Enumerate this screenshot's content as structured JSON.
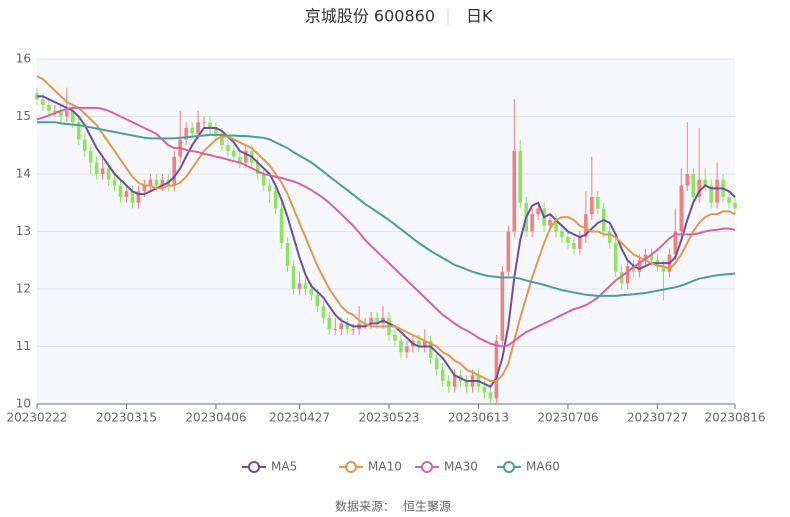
{
  "chart_data": {
    "type": "candlestick",
    "title": "京城股份 600860",
    "subtitle": "日K",
    "source_label": "数据来源：",
    "source_name": "恒生聚源",
    "categories": [
      "20230222",
      null,
      null,
      null,
      null,
      null,
      null,
      null,
      null,
      null,
      null,
      null,
      null,
      null,
      null,
      "20230315",
      null,
      null,
      null,
      null,
      null,
      null,
      null,
      null,
      null,
      null,
      null,
      null,
      null,
      null,
      "20230406",
      null,
      null,
      null,
      null,
      null,
      null,
      null,
      null,
      null,
      null,
      null,
      null,
      null,
      "20230427",
      null,
      null,
      null,
      null,
      null,
      null,
      null,
      null,
      null,
      null,
      null,
      null,
      null,
      null,
      "20230523",
      null,
      null,
      null,
      null,
      null,
      null,
      null,
      null,
      null,
      null,
      null,
      null,
      null,
      null,
      "20230613",
      null,
      null,
      null,
      null,
      null,
      null,
      null,
      null,
      null,
      null,
      null,
      null,
      null,
      null,
      "20230706",
      null,
      null,
      null,
      null,
      null,
      null,
      null,
      null,
      null,
      null,
      null,
      null,
      null,
      null,
      "20230727",
      null,
      null,
      null,
      null,
      null,
      null,
      null,
      null,
      null,
      null,
      null,
      null,
      "20230816"
    ],
    "open": [
      15.4,
      15.3,
      15.2,
      15.1,
      15.1,
      15.0,
      15.1,
      14.9,
      14.6,
      14.4,
      14.2,
      14.0,
      14.1,
      13.9,
      13.8,
      13.6,
      13.7,
      13.5,
      13.7,
      13.8,
      13.9,
      13.8,
      13.9,
      13.8,
      14.3,
      14.6,
      14.8,
      14.7,
      14.9,
      14.9,
      14.8,
      14.7,
      14.5,
      14.4,
      14.3,
      14.2,
      14.4,
      14.2,
      14.0,
      13.8,
      13.7,
      13.4,
      12.8,
      12.4,
      12.0,
      12.1,
      12.0,
      11.9,
      11.7,
      11.5,
      11.3,
      11.3,
      11.4,
      11.3,
      11.3,
      11.4,
      11.4,
      11.5,
      11.4,
      11.5,
      11.2,
      11.1,
      10.9,
      11.0,
      11.1,
      11.0,
      11.1,
      10.8,
      10.6,
      10.4,
      10.3,
      10.5,
      10.4,
      10.3,
      10.5,
      10.3,
      10.2,
      10.1,
      11.1,
      12.3,
      13.0,
      14.4,
      13.5,
      13.0,
      13.3,
      13.4,
      13.1,
      13.2,
      13.0,
      12.9,
      12.8,
      12.7,
      12.9,
      13.3,
      13.6,
      13.4,
      13.0,
      12.8,
      12.3,
      12.1,
      12.4,
      12.3,
      12.5,
      12.6,
      12.5,
      12.4,
      12.3,
      12.6,
      13.0,
      13.8,
      14.0,
      13.6,
      13.9,
      13.8,
      13.5,
      13.9,
      13.6,
      13.5
    ],
    "close": [
      15.3,
      15.2,
      15.1,
      15.1,
      15.0,
      15.1,
      14.9,
      14.6,
      14.4,
      14.2,
      14.0,
      14.1,
      13.9,
      13.8,
      13.6,
      13.7,
      13.5,
      13.7,
      13.8,
      13.9,
      13.8,
      13.9,
      13.8,
      14.3,
      14.6,
      14.8,
      14.7,
      14.9,
      14.9,
      14.8,
      14.7,
      14.5,
      14.4,
      14.3,
      14.2,
      14.4,
      14.2,
      14.0,
      13.8,
      13.7,
      13.4,
      12.8,
      12.4,
      12.0,
      12.1,
      12.0,
      11.9,
      11.7,
      11.5,
      11.3,
      11.3,
      11.4,
      11.3,
      11.3,
      11.4,
      11.4,
      11.5,
      11.4,
      11.5,
      11.2,
      11.1,
      10.9,
      11.0,
      11.1,
      11.0,
      11.1,
      10.8,
      10.6,
      10.4,
      10.3,
      10.5,
      10.4,
      10.3,
      10.5,
      10.3,
      10.2,
      10.1,
      11.1,
      12.3,
      13.0,
      14.4,
      13.5,
      13.0,
      13.3,
      13.4,
      13.1,
      13.2,
      13.0,
      12.9,
      12.8,
      12.7,
      12.9,
      13.3,
      13.6,
      13.4,
      13.0,
      12.8,
      12.3,
      12.1,
      12.4,
      12.3,
      12.5,
      12.6,
      12.5,
      12.4,
      12.3,
      12.6,
      13.0,
      13.8,
      14.0,
      13.6,
      13.9,
      13.8,
      13.5,
      13.9,
      13.6,
      13.5,
      13.4
    ],
    "high": [
      15.5,
      15.4,
      15.3,
      15.2,
      15.2,
      15.5,
      15.2,
      15.0,
      14.7,
      14.5,
      14.3,
      14.3,
      14.2,
      14.0,
      13.9,
      13.8,
      13.8,
      13.8,
      13.9,
      14.0,
      14.0,
      14.0,
      14.0,
      14.4,
      15.1,
      14.9,
      14.9,
      15.1,
      15.0,
      15.0,
      14.9,
      14.8,
      14.6,
      14.5,
      14.4,
      14.5,
      14.5,
      14.3,
      14.1,
      13.9,
      13.8,
      13.5,
      12.9,
      12.5,
      12.3,
      12.2,
      12.1,
      12.0,
      11.8,
      11.6,
      11.5,
      11.5,
      11.5,
      11.4,
      11.7,
      11.5,
      11.6,
      11.6,
      11.7,
      11.6,
      11.3,
      11.2,
      11.1,
      11.2,
      11.2,
      11.3,
      11.2,
      10.9,
      10.7,
      10.5,
      10.6,
      10.6,
      10.5,
      10.6,
      10.6,
      10.4,
      10.3,
      11.2,
      12.4,
      13.1,
      15.3,
      14.6,
      13.6,
      13.4,
      13.5,
      13.5,
      13.3,
      13.3,
      13.1,
      13.0,
      12.9,
      13.0,
      13.7,
      14.3,
      13.7,
      13.5,
      13.1,
      12.9,
      12.4,
      12.5,
      12.5,
      12.6,
      12.7,
      12.7,
      12.6,
      12.5,
      12.7,
      13.4,
      14.1,
      14.9,
      14.1,
      14.8,
      14.1,
      13.9,
      14.2,
      14.0,
      13.7,
      13.6
    ],
    "low": [
      15.2,
      15.1,
      15.0,
      15.0,
      14.9,
      14.9,
      14.8,
      14.5,
      14.3,
      14.0,
      13.9,
      13.9,
      13.8,
      13.7,
      13.5,
      13.5,
      13.4,
      13.4,
      13.6,
      13.7,
      13.7,
      13.7,
      13.7,
      13.7,
      14.2,
      14.5,
      14.6,
      14.6,
      14.8,
      14.7,
      14.6,
      14.4,
      14.3,
      14.2,
      14.1,
      14.1,
      14.1,
      13.9,
      13.7,
      13.5,
      13.3,
      12.7,
      12.3,
      11.9,
      11.9,
      11.9,
      11.8,
      11.6,
      11.4,
      11.2,
      11.2,
      11.2,
      11.2,
      11.2,
      11.2,
      11.3,
      11.3,
      11.3,
      11.3,
      11.1,
      11.0,
      10.8,
      10.8,
      10.9,
      10.9,
      10.9,
      10.7,
      10.5,
      10.3,
      10.2,
      10.2,
      10.3,
      10.2,
      10.2,
      10.2,
      10.1,
      10.0,
      10.0,
      11.0,
      12.2,
      12.9,
      13.4,
      12.9,
      12.9,
      13.2,
      13.0,
      13.0,
      12.9,
      12.8,
      12.7,
      12.6,
      12.6,
      12.8,
      13.2,
      13.3,
      12.9,
      12.7,
      12.2,
      12.0,
      12.0,
      12.2,
      12.2,
      12.4,
      12.4,
      12.3,
      11.8,
      12.2,
      12.5,
      12.9,
      13.7,
      13.5,
      13.5,
      13.7,
      13.4,
      13.4,
      13.5,
      13.4,
      13.3
    ],
    "up_color": "#f47f7f",
    "down_color": "#8fe35f",
    "series": [
      {
        "name": "MA5",
        "color": "#6c4f9e",
        "values": [
          15.35,
          15.35,
          15.3,
          15.25,
          15.2,
          15.15,
          15.1,
          15.0,
          14.85,
          14.65,
          14.45,
          14.3,
          14.15,
          14.0,
          13.9,
          13.8,
          13.7,
          13.65,
          13.65,
          13.7,
          13.75,
          13.8,
          13.85,
          13.95,
          14.1,
          14.3,
          14.5,
          14.65,
          14.8,
          14.8,
          14.8,
          14.75,
          14.65,
          14.55,
          14.4,
          14.35,
          14.3,
          14.2,
          14.1,
          14.0,
          13.8,
          13.55,
          13.25,
          12.9,
          12.55,
          12.25,
          12.05,
          11.95,
          11.85,
          11.7,
          11.55,
          11.45,
          11.4,
          11.35,
          11.35,
          11.35,
          11.4,
          11.4,
          11.45,
          11.4,
          11.35,
          11.25,
          11.15,
          11.05,
          11.0,
          11.0,
          11.0,
          10.9,
          10.8,
          10.65,
          10.5,
          10.45,
          10.4,
          10.4,
          10.4,
          10.35,
          10.3,
          10.45,
          10.8,
          11.35,
          12.2,
          12.85,
          13.25,
          13.45,
          13.5,
          13.25,
          13.3,
          13.2,
          13.1,
          13.0,
          12.95,
          12.9,
          12.95,
          13.05,
          13.15,
          13.2,
          13.15,
          12.95,
          12.7,
          12.5,
          12.4,
          12.35,
          12.4,
          12.45,
          12.45,
          12.45,
          12.45,
          12.55,
          12.85,
          13.2,
          13.5,
          13.7,
          13.8,
          13.75,
          13.75,
          13.75,
          13.7,
          13.6
        ]
      },
      {
        "name": "MA10",
        "color": "#e0994f",
        "values": [
          15.7,
          15.65,
          15.55,
          15.45,
          15.35,
          15.25,
          15.2,
          15.15,
          15.05,
          14.95,
          14.85,
          14.7,
          14.55,
          14.4,
          14.25,
          14.1,
          13.95,
          13.85,
          13.8,
          13.8,
          13.75,
          13.75,
          13.8,
          13.8,
          13.85,
          13.95,
          14.1,
          14.25,
          14.4,
          14.5,
          14.6,
          14.65,
          14.65,
          14.6,
          14.55,
          14.5,
          14.45,
          14.35,
          14.25,
          14.15,
          14.0,
          13.85,
          13.65,
          13.4,
          13.15,
          12.9,
          12.65,
          12.4,
          12.2,
          12.0,
          11.85,
          11.7,
          11.6,
          11.55,
          11.45,
          11.4,
          11.35,
          11.35,
          11.35,
          11.35,
          11.35,
          11.3,
          11.25,
          11.2,
          11.15,
          11.1,
          11.05,
          11.0,
          10.9,
          10.85,
          10.75,
          10.7,
          10.6,
          10.55,
          10.5,
          10.45,
          10.4,
          10.4,
          10.5,
          10.7,
          11.1,
          11.5,
          11.85,
          12.2,
          12.5,
          12.8,
          13.05,
          13.2,
          13.25,
          13.25,
          13.2,
          13.1,
          13.05,
          13.0,
          13.0,
          12.95,
          12.95,
          12.9,
          12.8,
          12.7,
          12.6,
          12.55,
          12.5,
          12.45,
          12.4,
          12.4,
          12.35,
          12.45,
          12.6,
          12.8,
          13.0,
          13.15,
          13.25,
          13.3,
          13.3,
          13.35,
          13.35,
          13.3
        ]
      },
      {
        "name": "MA30",
        "color": "#d663a8",
        "values": [
          14.95,
          14.98,
          15.02,
          15.06,
          15.1,
          15.13,
          15.15,
          15.15,
          15.15,
          15.15,
          15.15,
          15.13,
          15.1,
          15.05,
          15.0,
          14.95,
          14.9,
          14.85,
          14.8,
          14.75,
          14.7,
          14.6,
          14.5,
          14.45,
          14.45,
          14.42,
          14.4,
          14.38,
          14.35,
          14.33,
          14.3,
          14.28,
          14.25,
          14.22,
          14.2,
          14.15,
          14.1,
          14.05,
          14.0,
          13.98,
          13.95,
          13.93,
          13.9,
          13.87,
          13.83,
          13.78,
          13.72,
          13.65,
          13.58,
          13.5,
          13.4,
          13.3,
          13.2,
          13.1,
          12.98,
          12.85,
          12.75,
          12.65,
          12.55,
          12.45,
          12.35,
          12.25,
          12.15,
          12.05,
          11.95,
          11.85,
          11.75,
          11.65,
          11.55,
          11.48,
          11.4,
          11.33,
          11.28,
          11.22,
          11.15,
          11.1,
          11.05,
          11.02,
          11.0,
          11.02,
          11.1,
          11.18,
          11.25,
          11.3,
          11.35,
          11.4,
          11.45,
          11.5,
          11.55,
          11.6,
          11.65,
          11.68,
          11.72,
          11.78,
          11.85,
          11.95,
          12.05,
          12.15,
          12.22,
          12.3,
          12.38,
          12.45,
          12.52,
          12.6,
          12.68,
          12.78,
          12.88,
          12.95,
          12.95,
          12.95,
          12.95,
          12.97,
          13.0,
          13.02,
          13.03,
          13.05,
          13.05,
          13.03
        ]
      },
      {
        "name": "MA60",
        "color": "#4b9e9b",
        "values": [
          14.9,
          14.9,
          14.9,
          14.9,
          14.88,
          14.87,
          14.86,
          14.85,
          14.83,
          14.81,
          14.79,
          14.77,
          14.75,
          14.73,
          14.71,
          14.69,
          14.67,
          14.65,
          14.63,
          14.62,
          14.62,
          14.62,
          14.62,
          14.62,
          14.63,
          14.64,
          14.65,
          14.66,
          14.67,
          14.68,
          14.68,
          14.68,
          14.67,
          14.67,
          14.66,
          14.66,
          14.65,
          14.64,
          14.63,
          14.6,
          14.55,
          14.5,
          14.45,
          14.38,
          14.32,
          14.26,
          14.2,
          14.12,
          14.04,
          13.96,
          13.88,
          13.8,
          13.72,
          13.64,
          13.56,
          13.48,
          13.41,
          13.34,
          13.27,
          13.2,
          13.12,
          13.04,
          12.96,
          12.88,
          12.8,
          12.73,
          12.66,
          12.6,
          12.54,
          12.48,
          12.42,
          12.38,
          12.34,
          12.3,
          12.27,
          12.24,
          12.22,
          12.21,
          12.2,
          12.2,
          12.2,
          12.18,
          12.15,
          12.12,
          12.1,
          12.07,
          12.04,
          12.01,
          11.98,
          11.96,
          11.94,
          11.92,
          11.9,
          11.89,
          11.88,
          11.88,
          11.88,
          11.88,
          11.89,
          11.9,
          11.91,
          11.92,
          11.93,
          11.95,
          11.97,
          11.99,
          12.01,
          12.03,
          12.06,
          12.1,
          12.14,
          12.18,
          12.2,
          12.22,
          12.24,
          12.25,
          12.26,
          12.27
        ]
      }
    ],
    "ylim": [
      10,
      16
    ],
    "yticks": [
      10,
      11,
      12,
      13,
      14,
      15,
      16
    ],
    "grid": true
  }
}
